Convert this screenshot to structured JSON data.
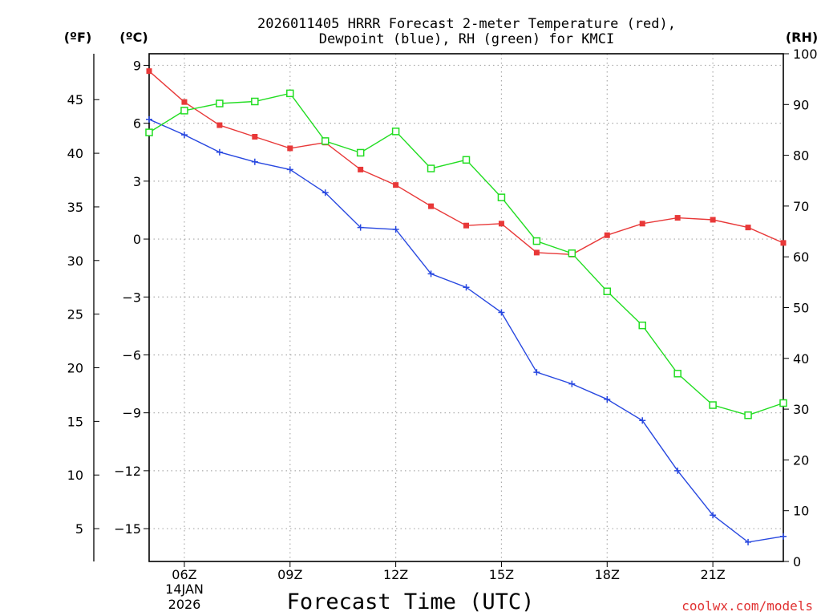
{
  "chart_data": {
    "type": "line",
    "title_line1": "2026011405 HRRR Forecast 2-meter Temperature (red),",
    "title_line2": "Dewpoint (blue), RH (green) for KMCI",
    "xlabel": "Forecast Time (UTC)",
    "credit": "coolwx.com/models",
    "unit_f": "(ºF)",
    "unit_c": "(ºC)",
    "unit_rh": "(RH)",
    "x_hours": [
      5,
      6,
      7,
      8,
      9,
      10,
      11,
      12,
      13,
      14,
      15,
      16,
      17,
      18,
      19,
      20,
      21,
      22,
      23
    ],
    "x_tick_hours": [
      6,
      9,
      12,
      15,
      18,
      21
    ],
    "x_tick_labels": [
      "06Z",
      "09Z",
      "12Z",
      "15Z",
      "18Z",
      "21Z"
    ],
    "date_day": "14JAN",
    "date_year": "2026",
    "xlim": [
      5,
      23
    ],
    "c_ticks": [
      9,
      6,
      3,
      0,
      -3,
      -6,
      -9,
      -12,
      -15
    ],
    "c_tick_labels": [
      "9",
      "6",
      "3",
      "0",
      "−3",
      "−6",
      "−9",
      "−12",
      "−15"
    ],
    "f_ticks": [
      45,
      40,
      35,
      30,
      25,
      20,
      15,
      10,
      5
    ],
    "rh_ticks": [
      100,
      90,
      80,
      70,
      60,
      50,
      40,
      30,
      20,
      10,
      0
    ],
    "ylim_c": [
      -16.7,
      9.6
    ],
    "ylim_rh": [
      0,
      100
    ],
    "series": [
      {
        "name": "Temperature",
        "axis": "C",
        "color": "#e83838",
        "marker": "filled-square",
        "values": [
          8.7,
          7.1,
          5.9,
          5.3,
          4.7,
          5.0,
          3.6,
          2.8,
          1.7,
          0.7,
          0.8,
          -0.7,
          -0.8,
          0.2,
          0.8,
          1.1,
          1.0,
          0.6,
          -0.2
        ]
      },
      {
        "name": "Dewpoint",
        "axis": "C",
        "color": "#2848e0",
        "marker": "plus",
        "values": [
          6.2,
          5.4,
          4.5,
          4.0,
          3.6,
          2.4,
          0.6,
          0.5,
          -1.8,
          -2.5,
          -3.8,
          -6.9,
          -7.5,
          -8.3,
          -9.4,
          -12.0,
          -14.3,
          -15.7,
          -15.4
        ]
      },
      {
        "name": "RH",
        "axis": "RH",
        "color": "#22dd22",
        "marker": "open-square",
        "values": [
          84.5,
          88.8,
          90.2,
          90.6,
          92.2,
          82.8,
          80.5,
          84.7,
          77.4,
          79.1,
          71.7,
          63.1,
          60.7,
          53.2,
          46.5,
          37.0,
          30.8,
          28.8,
          31.2
        ]
      }
    ]
  }
}
